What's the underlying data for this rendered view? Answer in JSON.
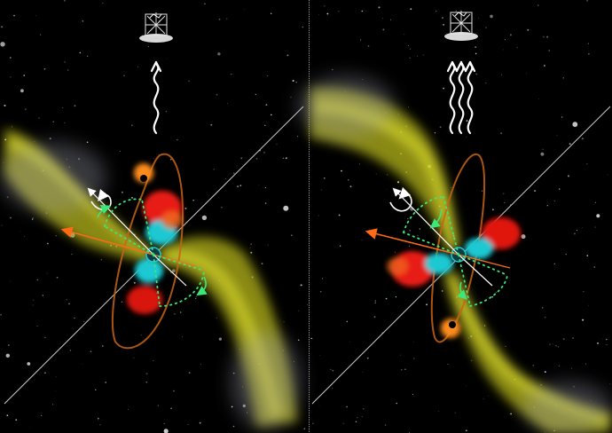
{
  "figure": {
    "panels": [
      {
        "id": "left",
        "signal_waves": 1,
        "satellite_icon": "space-telescope-icon"
      },
      {
        "id": "right",
        "signal_waves": 3,
        "satellite_icon": "space-telescope-icon"
      }
    ],
    "colors": {
      "background": "#000000",
      "jet": "#c8c81e",
      "disk_hot": "#e81e14",
      "disk_core": "#1ec8d2",
      "orbit": "#c86414",
      "spin_arrow": "#ff6a14",
      "precession": "#3ce678",
      "rotation": "#ffffff"
    }
  }
}
